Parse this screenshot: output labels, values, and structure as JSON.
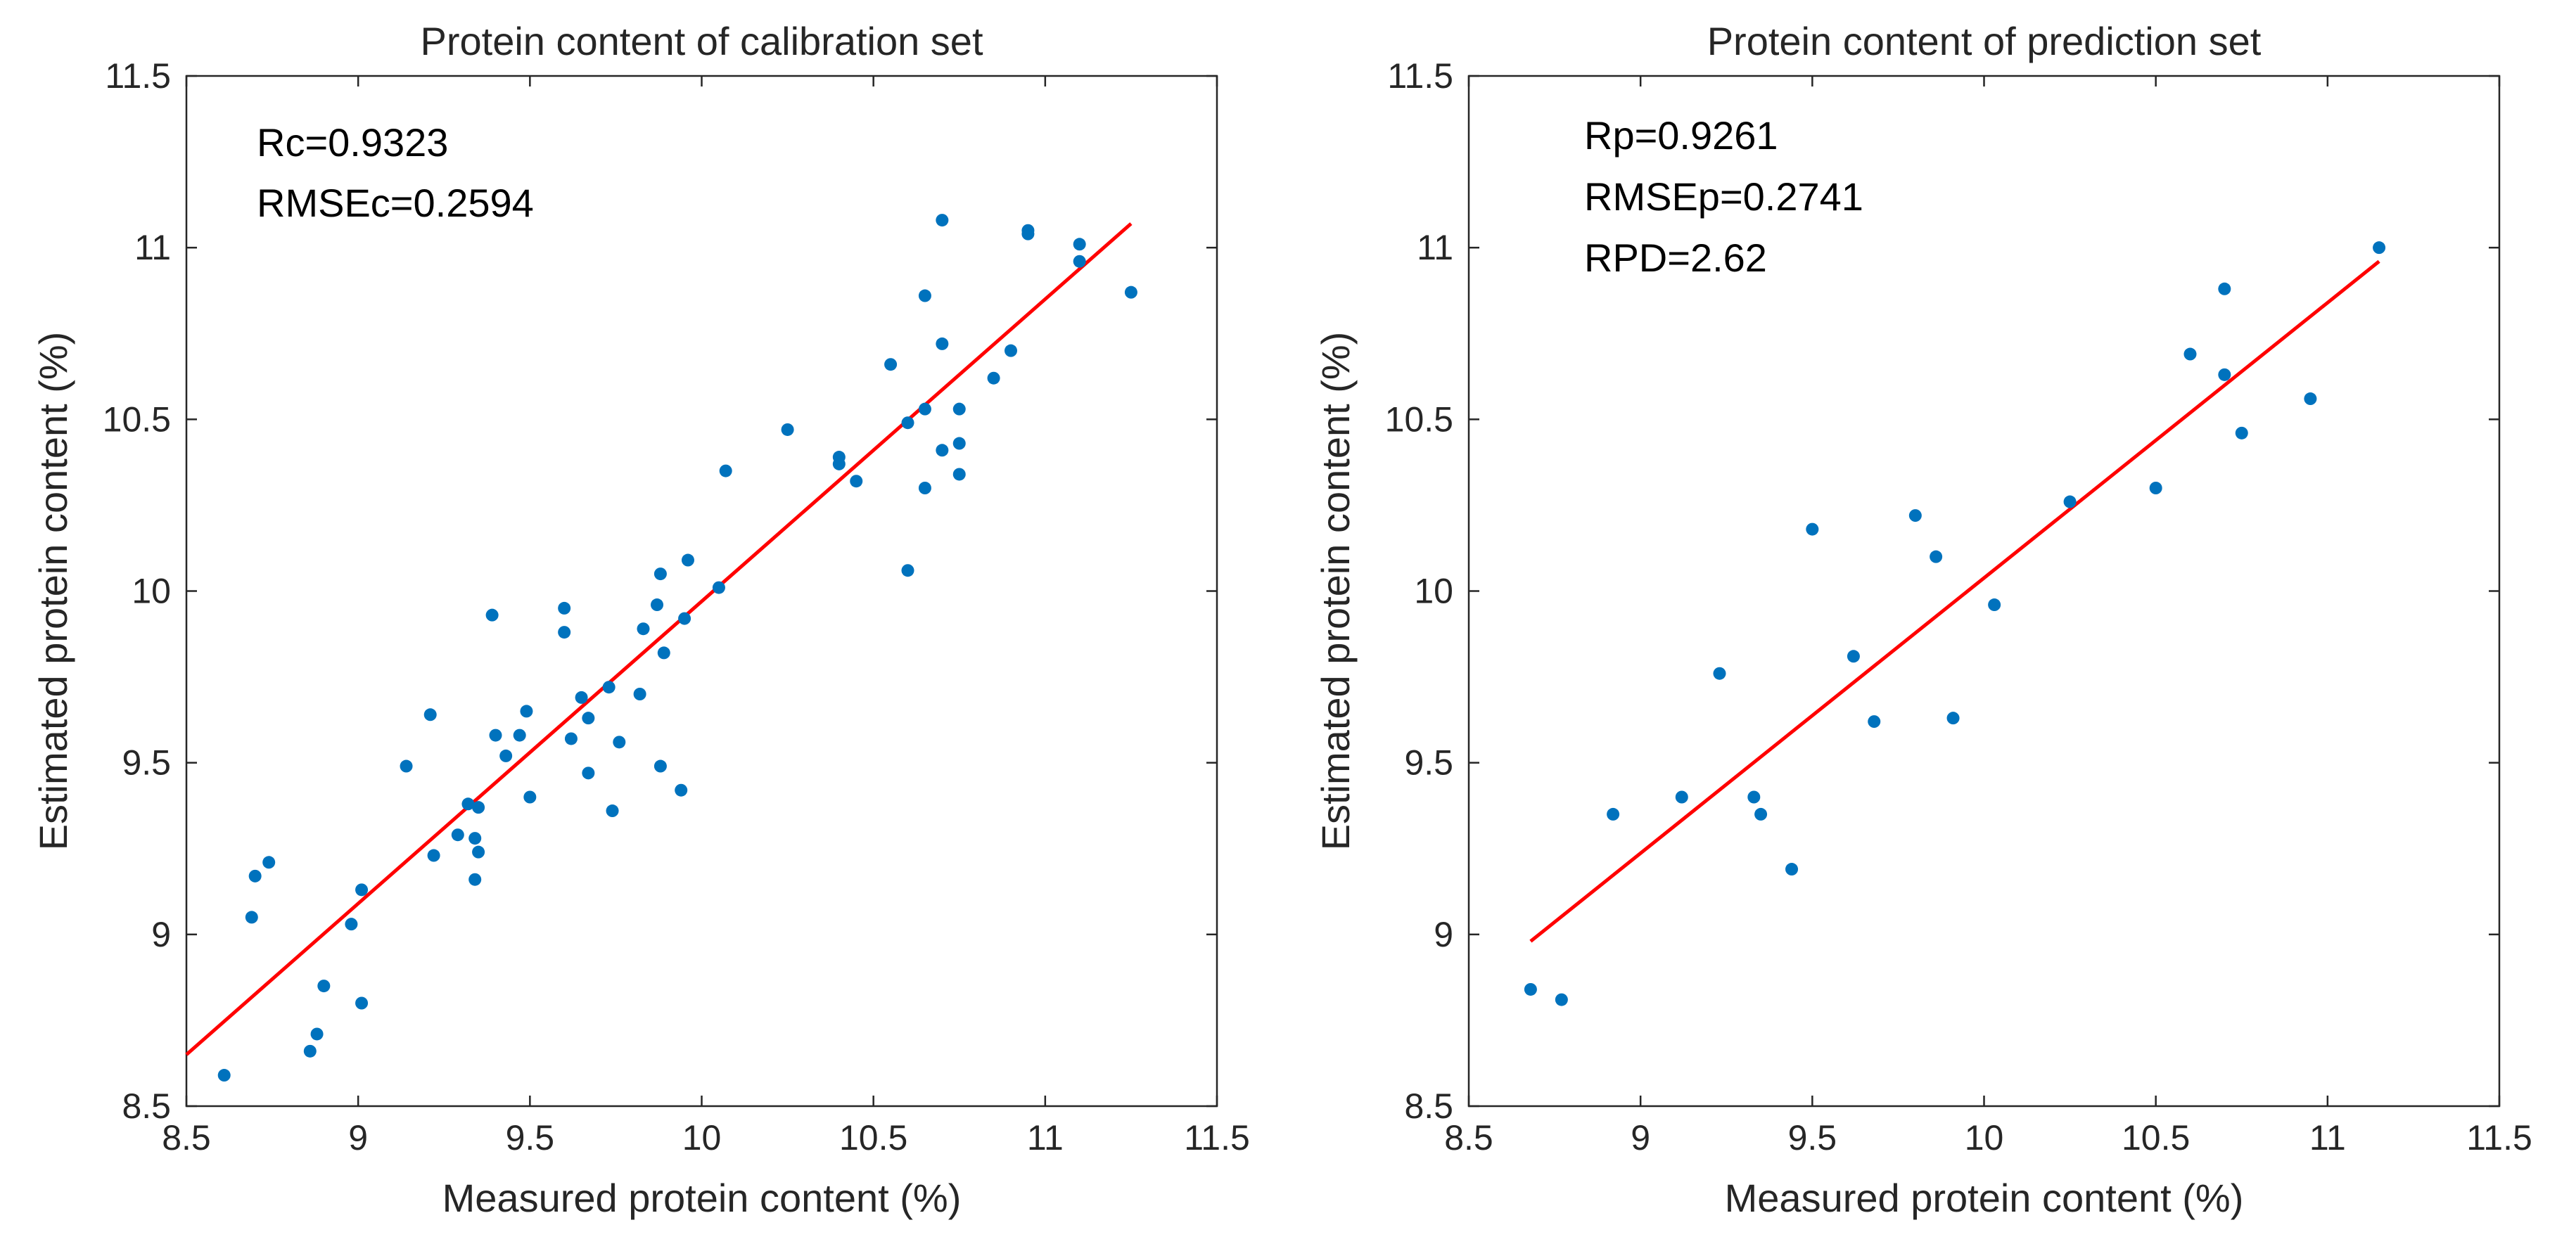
{
  "chart_data": [
    {
      "type": "scatter",
      "title": "Protein content of calibration set",
      "xlabel": "Measured protein content (%)",
      "ylabel": "Estimated protein content (%)",
      "xlim": [
        8.5,
        11.5
      ],
      "ylim": [
        8.5,
        11.5
      ],
      "xticks": [
        "8.5",
        "9",
        "9.5",
        "10",
        "10.5",
        "11",
        "11.5"
      ],
      "yticks": [
        "8.5",
        "9",
        "9.5",
        "10",
        "10.5",
        "11",
        "11.5"
      ],
      "grid": false,
      "annotations": [
        "Rc=0.9323",
        "RMSEc=0.2594"
      ],
      "colors": {
        "points": "#0072BD",
        "fit_line": "#FF0000",
        "axes": "#262626"
      },
      "series": [
        {
          "name": "samples",
          "points": [
            [
              8.61,
              8.59
            ],
            [
              8.86,
              8.66
            ],
            [
              8.88,
              8.71
            ],
            [
              8.9,
              8.85
            ],
            [
              9.01,
              8.8
            ],
            [
              8.69,
              9.05
            ],
            [
              8.7,
              9.17
            ],
            [
              8.74,
              9.21
            ],
            [
              8.98,
              9.03
            ],
            [
              9.01,
              9.13
            ],
            [
              9.14,
              9.49
            ],
            [
              9.21,
              9.64
            ],
            [
              9.22,
              9.23
            ],
            [
              9.29,
              9.29
            ],
            [
              9.32,
              9.38
            ],
            [
              9.34,
              9.28
            ],
            [
              9.34,
              9.16
            ],
            [
              9.35,
              9.37
            ],
            [
              9.35,
              9.24
            ],
            [
              9.39,
              9.93
            ],
            [
              9.4,
              9.58
            ],
            [
              9.43,
              9.52
            ],
            [
              9.47,
              9.58
            ],
            [
              9.49,
              9.65
            ],
            [
              9.5,
              9.4
            ],
            [
              9.6,
              9.95
            ],
            [
              9.6,
              9.88
            ],
            [
              9.62,
              9.57
            ],
            [
              9.65,
              9.69
            ],
            [
              9.67,
              9.63
            ],
            [
              9.67,
              9.47
            ],
            [
              9.73,
              9.72
            ],
            [
              9.74,
              9.36
            ],
            [
              9.76,
              9.56
            ],
            [
              9.82,
              9.7
            ],
            [
              9.83,
              9.89
            ],
            [
              9.87,
              9.96
            ],
            [
              9.88,
              10.05
            ],
            [
              9.88,
              9.49
            ],
            [
              9.89,
              9.82
            ],
            [
              9.94,
              9.42
            ],
            [
              9.95,
              9.92
            ],
            [
              9.96,
              10.09
            ],
            [
              10.05,
              10.01
            ],
            [
              10.07,
              10.35
            ],
            [
              10.25,
              10.47
            ],
            [
              10.4,
              10.39
            ],
            [
              10.4,
              10.37
            ],
            [
              10.45,
              10.32
            ],
            [
              10.55,
              10.66
            ],
            [
              10.6,
              10.49
            ],
            [
              10.6,
              10.06
            ],
            [
              10.65,
              10.53
            ],
            [
              10.65,
              10.86
            ],
            [
              10.65,
              10.3
            ],
            [
              10.7,
              10.41
            ],
            [
              10.7,
              10.72
            ],
            [
              10.7,
              11.08
            ],
            [
              10.75,
              10.53
            ],
            [
              10.75,
              10.43
            ],
            [
              10.75,
              10.34
            ],
            [
              10.85,
              10.62
            ],
            [
              10.9,
              10.7
            ],
            [
              10.95,
              11.05
            ],
            [
              10.95,
              11.04
            ],
            [
              11.1,
              11.01
            ],
            [
              11.1,
              10.96
            ],
            [
              11.25,
              10.87
            ]
          ]
        },
        {
          "name": "fit",
          "line": [
            [
              8.5,
              8.65
            ],
            [
              11.25,
              11.07
            ]
          ]
        }
      ]
    },
    {
      "type": "scatter",
      "title": "Protein content of prediction set",
      "xlabel": "Measured protein content (%)",
      "ylabel": "Estimated protein content (%)",
      "xlim": [
        8.5,
        11.5
      ],
      "ylim": [
        8.5,
        11.5
      ],
      "xticks": [
        "8.5",
        "9",
        "9.5",
        "10",
        "10.5",
        "11",
        "11.5"
      ],
      "yticks": [
        "8.5",
        "9",
        "9.5",
        "10",
        "10.5",
        "11",
        "11.5"
      ],
      "grid": false,
      "annotations": [
        "Rp=0.9261",
        "RMSEp=0.2741",
        "RPD=2.62"
      ],
      "colors": {
        "points": "#0072BD",
        "fit_line": "#FF0000",
        "axes": "#262626"
      },
      "series": [
        {
          "name": "samples",
          "points": [
            [
              8.68,
              8.84
            ],
            [
              8.77,
              8.81
            ],
            [
              8.92,
              9.35
            ],
            [
              9.12,
              9.4
            ],
            [
              9.23,
              9.76
            ],
            [
              9.33,
              9.4
            ],
            [
              9.35,
              9.35
            ],
            [
              9.44,
              9.19
            ],
            [
              9.5,
              10.18
            ],
            [
              9.62,
              9.81
            ],
            [
              9.68,
              9.62
            ],
            [
              9.8,
              10.22
            ],
            [
              9.86,
              10.1
            ],
            [
              9.91,
              9.63
            ],
            [
              10.03,
              9.96
            ],
            [
              10.25,
              10.26
            ],
            [
              10.5,
              10.3
            ],
            [
              10.6,
              10.69
            ],
            [
              10.7,
              10.88
            ],
            [
              10.7,
              10.63
            ],
            [
              10.75,
              10.46
            ],
            [
              10.95,
              10.56
            ],
            [
              11.15,
              11.0
            ]
          ]
        },
        {
          "name": "fit",
          "line": [
            [
              8.68,
              8.98
            ],
            [
              11.15,
              10.96
            ]
          ]
        }
      ]
    }
  ]
}
